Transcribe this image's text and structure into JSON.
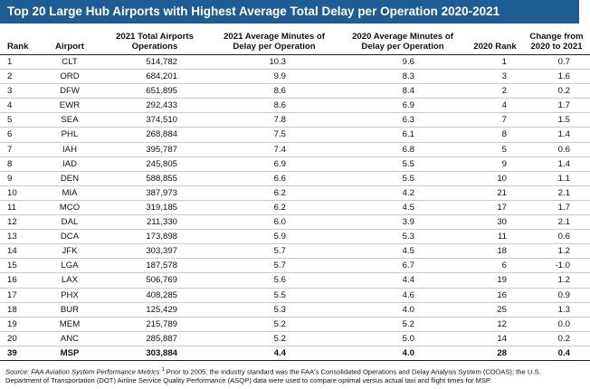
{
  "title": "Top 20 Large Hub Airports with Highest Average Total Delay per Operation 2020-2021",
  "columns": [
    "Rank",
    "Airport",
    "2021 Total Airports Operations",
    "2021 Average Minutes of Delay per Operation",
    "2020 Average Minutes of Delay per Operation",
    "2020 Rank",
    "Change from 2020 to 2021"
  ],
  "rows": [
    [
      "1",
      "CLT",
      "514,782",
      "10.3",
      "9.6",
      "1",
      "0.7"
    ],
    [
      "2",
      "ORD",
      "684,201",
      "9.9",
      "8.3",
      "3",
      "1.6"
    ],
    [
      "3",
      "DFW",
      "651,895",
      "8.6",
      "8.4",
      "2",
      "0.2"
    ],
    [
      "4",
      "EWR",
      "292,433",
      "8.6",
      "6.9",
      "4",
      "1.7"
    ],
    [
      "5",
      "SEA",
      "374,510",
      "7.8",
      "6.3",
      "7",
      "1.5"
    ],
    [
      "6",
      "PHL",
      "268,884",
      "7.5",
      "6.1",
      "8",
      "1.4"
    ],
    [
      "7",
      "IAH",
      "395,787",
      "7.4",
      "6.8",
      "5",
      "0.6"
    ],
    [
      "8",
      "IAD",
      "245,805",
      "6.9",
      "5.5",
      "9",
      "1.4"
    ],
    [
      "9",
      "DEN",
      "588,855",
      "6.6",
      "5.5",
      "10",
      "1.1"
    ],
    [
      "10",
      "MIA",
      "387,973",
      "6.2",
      "4.2",
      "21",
      "2.1"
    ],
    [
      "11",
      "MCO",
      "319,185",
      "6.2",
      "4.5",
      "17",
      "1.7"
    ],
    [
      "12",
      "DAL",
      "211,330",
      "6.0",
      "3.9",
      "30",
      "2.1"
    ],
    [
      "13",
      "DCA",
      "173,898",
      "5.9",
      "5.3",
      "11",
      "0.6"
    ],
    [
      "14",
      "JFK",
      "303,397",
      "5.7",
      "4.5",
      "18",
      "1.2"
    ],
    [
      "15",
      "LGA",
      "187,578",
      "5.7",
      "6.7",
      "6",
      "-1.0"
    ],
    [
      "16",
      "LAX",
      "506,769",
      "5.6",
      "4.4",
      "19",
      "1.2"
    ],
    [
      "17",
      "PHX",
      "408,285",
      "5.5",
      "4.6",
      "16",
      "0.9"
    ],
    [
      "18",
      "BUR",
      "125,429",
      "5.3",
      "4.0",
      "25",
      "1.3"
    ],
    [
      "19",
      "MEM",
      "215,789",
      "5.2",
      "5.2",
      "12",
      "0.0"
    ],
    [
      "20",
      "ANC",
      "285,887",
      "5.2",
      "5.0",
      "14",
      "0.2"
    ],
    [
      "39",
      "MSP",
      "303,884",
      "4.4",
      "4.0",
      "28",
      "0.4"
    ]
  ],
  "footnote": {
    "source_label": "Source: FAA Aviation System Performance Metrics",
    "sup": "1",
    "text": " Prior to 2005, the industry standard was the FAA's Consolidated Operations and Delay Analysis System (CODAS); the U.S. Department of Transportation (DOT) Airline Service Quality Performance (ASQP) data were used to compare optimal versus actual taxi and flight times for MSP."
  },
  "colors": {
    "title_bar": "#1f5c93",
    "title_text": "#ffffff"
  }
}
